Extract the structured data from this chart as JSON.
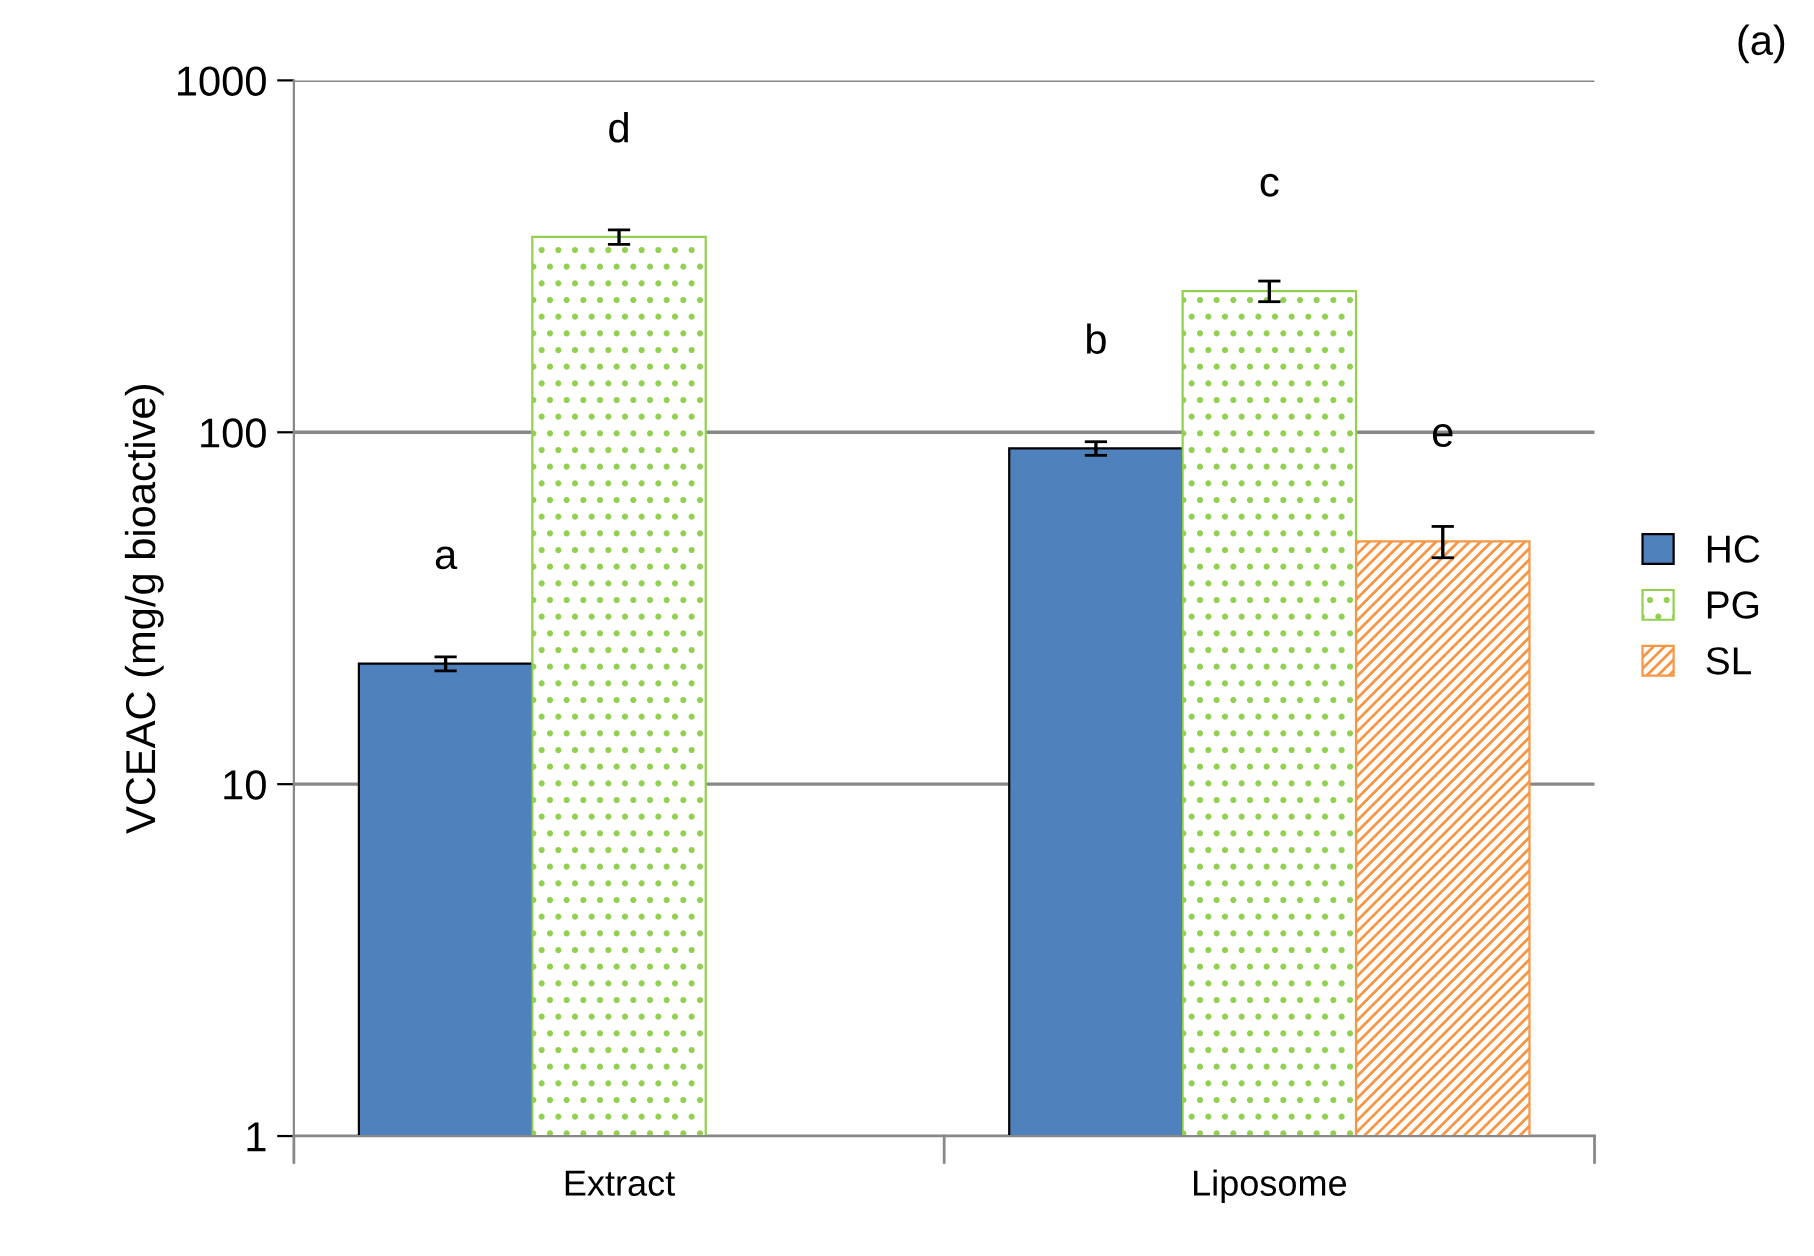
{
  "chart_data": {
    "type": "bar",
    "ylabel": "VCEAC (mg/g bioactive)",
    "categories": [
      "Extract",
      "Liposome"
    ],
    "series": [
      {
        "name": "HC",
        "color": "#4f81bd",
        "values": [
          22,
          90
        ],
        "errors": [
          1,
          4
        ]
      },
      {
        "name": "PG",
        "color": "#92d050",
        "values": [
          359,
          252
        ],
        "errors": [
          17,
          17
        ]
      },
      {
        "name": "SL",
        "color": "#f79646",
        "values": [
          null,
          49
        ],
        "errors": [
          null,
          5
        ]
      }
    ],
    "log": "y",
    "ylim": [
      1,
      1000
    ],
    "yticks": [
      1,
      10,
      100,
      1000
    ],
    "grid": "y",
    "legend": "right",
    "annotations": [
      "a",
      "d",
      "b",
      "c",
      "e",
      "(a)"
    ]
  }
}
